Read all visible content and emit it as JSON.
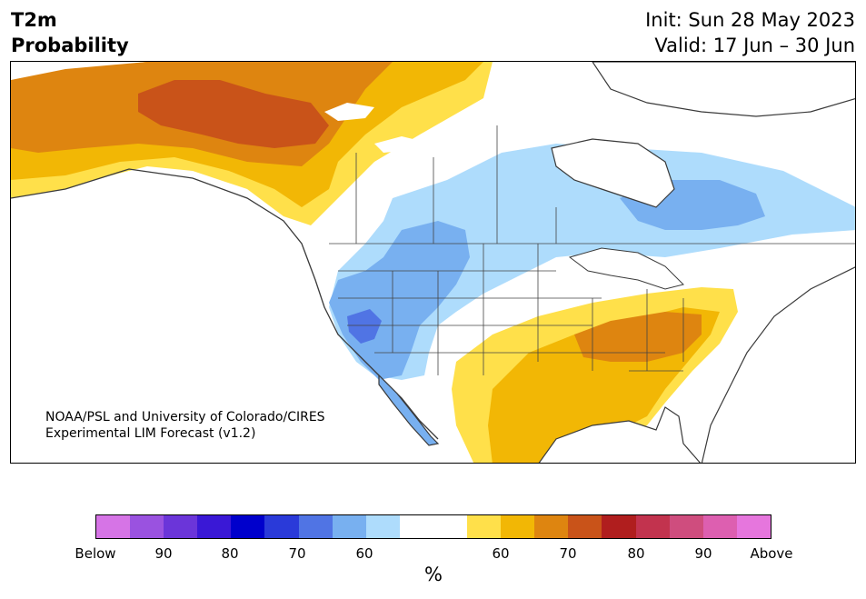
{
  "header": {
    "title_line1": "T2m",
    "title_line2": "Probability",
    "init": "Init: Sun 28 May 2023",
    "valid": "Valid: 17 Jun – 30 Jun"
  },
  "credit": {
    "line1": "NOAA/PSL and University of Colorado/CIRES",
    "line2": "Experimental LIM Forecast (v1.2)"
  },
  "colorbar": {
    "colors": [
      "#d674e6",
      "#9a52e0",
      "#6b35d9",
      "#3a18d6",
      "#0000cc",
      "#2a3ad9",
      "#5074e4",
      "#78b0f0",
      "#aedcfc",
      "#ffffff",
      "#ffffff",
      "#ffe04a",
      "#f2b705",
      "#de8510",
      "#c95319",
      "#b01e1e",
      "#c2334e",
      "#cf4d7e",
      "#dd5fb0",
      "#e676dd"
    ],
    "ticks": [
      "Below",
      "90",
      "80",
      "70",
      "60",
      "60",
      "70",
      "80",
      "90",
      "Above"
    ],
    "unit": "%"
  },
  "palette": {
    "ocean": "#ffffff",
    "coast": "#3a3a3a",
    "border": "#444444",
    "prob_below_60": "#aedcfc",
    "prob_below_70": "#78b0f0",
    "prob_below_80": "#5074e4",
    "prob_above_60": "#ffe04a",
    "prob_above_70": "#f2b705",
    "prob_above_80": "#de8510",
    "prob_above_90": "#c95319"
  }
}
